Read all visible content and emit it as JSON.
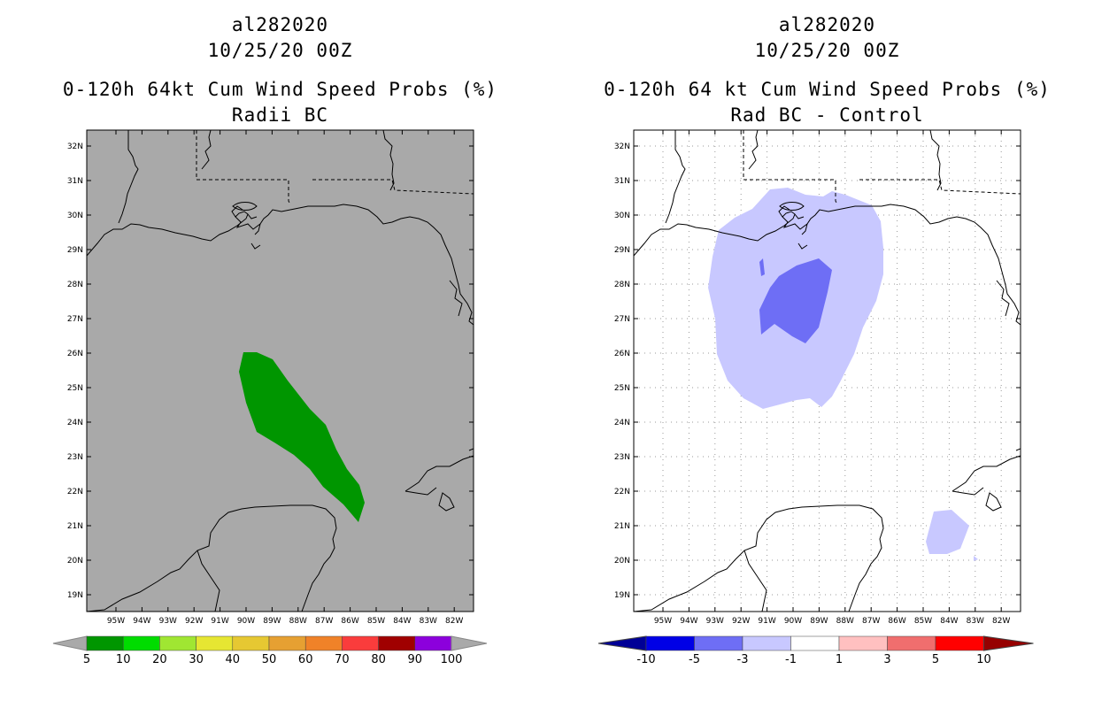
{
  "colors": {
    "land_bg": "#a9a9a9",
    "prob_fill": "#009600",
    "diff_light": "#c8c8ff",
    "diff_mid": "#6e6ef5"
  },
  "left": {
    "storm_id": "al282020",
    "datetime": "10/25/20 00Z",
    "title": "0-120h 64kt Cum Wind Speed Probs (%)",
    "subtitle": "Radii BC",
    "lat_labels": [
      "32N",
      "31N",
      "30N",
      "29N",
      "28N",
      "27N",
      "26N",
      "25N",
      "24N",
      "23N",
      "22N",
      "21N",
      "20N",
      "19N"
    ],
    "lon_labels": [
      "95W",
      "94W",
      "93W",
      "92W",
      "91W",
      "90W",
      "89W",
      "88W",
      "87W",
      "86W",
      "85W",
      "84W",
      "83W",
      "82W"
    ],
    "colorbar": {
      "colors": [
        "#009600",
        "#00dc00",
        "#a0e632",
        "#e6e632",
        "#e6c832",
        "#e6a032",
        "#f08228",
        "#fa3c3c",
        "#a00000",
        "#8c00dc"
      ],
      "labels": [
        "5",
        "10",
        "20",
        "30",
        "40",
        "50",
        "60",
        "70",
        "80",
        "90",
        "100"
      ]
    }
  },
  "right": {
    "storm_id": "al282020",
    "datetime": "10/25/20 00Z",
    "title": "0-120h 64 kt Cum Wind Speed Probs (%)",
    "subtitle": "Rad BC - Control",
    "lat_labels": [
      "32N",
      "31N",
      "30N",
      "29N",
      "28N",
      "27N",
      "26N",
      "25N",
      "24N",
      "23N",
      "22N",
      "21N",
      "20N",
      "19N"
    ],
    "lon_labels": [
      "95W",
      "94W",
      "93W",
      "92W",
      "91W",
      "90W",
      "89W",
      "88W",
      "87W",
      "86W",
      "85W",
      "84W",
      "83W",
      "82W"
    ],
    "colorbar": {
      "colors": [
        "#0000e6",
        "#6e6ef5",
        "#c8c8ff",
        "#ffffff",
        "#ffc0c0",
        "#f06e6e",
        "#ff0000"
      ],
      "end_left": "#000096",
      "end_right": "#960000",
      "labels": [
        "-10",
        "-5",
        "-3",
        "-1",
        "1",
        "3",
        "5",
        "10"
      ]
    }
  }
}
